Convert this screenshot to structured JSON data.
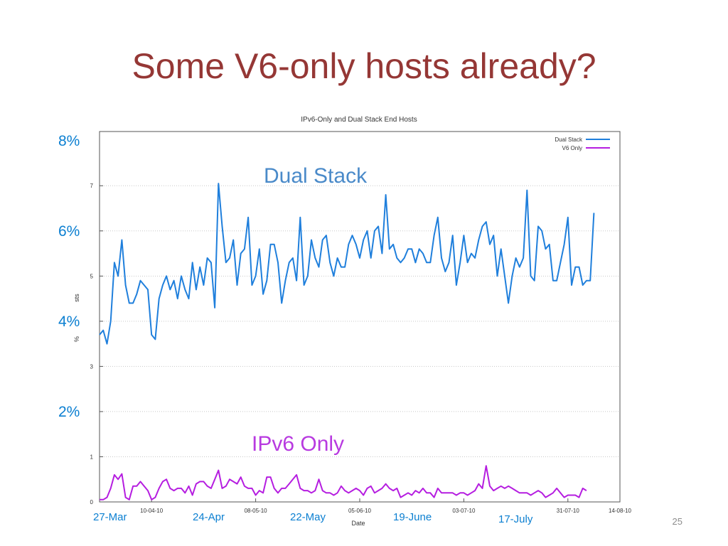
{
  "slide": {
    "title": "Some V6-only hosts already?",
    "page_number": "25"
  },
  "colors": {
    "title": "#953735",
    "annotation": "#0b7fd1",
    "dual_stack_label": "#4a8ac9",
    "v6_only_label": "#b83ae0"
  },
  "annotations": {
    "y_percent_labels": [
      {
        "text": "8%",
        "value": 8
      },
      {
        "text": "6%",
        "value": 6
      },
      {
        "text": "4%",
        "value": 4
      },
      {
        "text": "2%",
        "value": 2
      }
    ],
    "date_labels": [
      "27-Mar",
      "24-Apr",
      "22-May",
      "19-June",
      "17-July"
    ],
    "dual_stack_label": "Dual Stack",
    "v6_only_label": "IPv6 Only"
  },
  "chart_data": {
    "type": "line",
    "title": "IPv6-Only and Dual Stack End Hosts",
    "xlabel": "Date",
    "ylabel": "%",
    "ylabel_fragment": "sts",
    "ylim": [
      0,
      8.2
    ],
    "xlim": [
      "2010-03-27",
      "2010-08-14"
    ],
    "yticks": [
      0,
      1,
      2,
      3,
      4,
      5,
      6,
      7
    ],
    "ytick_labels": [
      "0",
      "1",
      "",
      "3",
      "",
      "5",
      "",
      "7"
    ],
    "xticks": [
      "10-04-10",
      "08-05-10",
      "05-06-10",
      "03-07-10",
      "31-07-10",
      "14-08-10"
    ],
    "xtick_labels": [
      "10-04-10",
      "08-05-10",
      "05-06-10",
      "03-07-10",
      "31-07-10",
      "14-08-10"
    ],
    "grid": true,
    "legend_position": "top-right",
    "series": [
      {
        "name": "Dual Stack",
        "color": "#1f7fdc",
        "start_date": "2010-03-27",
        "values": [
          3.7,
          3.8,
          3.5,
          4.0,
          5.3,
          5.0,
          5.8,
          4.8,
          4.4,
          4.4,
          4.6,
          4.9,
          4.8,
          4.7,
          3.7,
          3.6,
          4.5,
          4.8,
          5.0,
          4.7,
          4.9,
          4.5,
          5.0,
          4.7,
          4.5,
          5.3,
          4.7,
          5.2,
          4.8,
          5.4,
          5.3,
          4.3,
          7.05,
          6.1,
          5.3,
          5.4,
          5.8,
          4.8,
          5.5,
          5.6,
          6.3,
          4.8,
          5.0,
          5.6,
          4.6,
          4.9,
          5.7,
          5.7,
          5.3,
          4.4,
          4.9,
          5.3,
          5.4,
          4.9,
          6.3,
          4.8,
          5.0,
          5.8,
          5.4,
          5.2,
          5.8,
          5.9,
          5.3,
          5.0,
          5.4,
          5.2,
          5.2,
          5.7,
          5.9,
          5.7,
          5.4,
          5.8,
          6.0,
          5.4,
          6.0,
          6.1,
          5.5,
          6.8,
          5.6,
          5.7,
          5.4,
          5.3,
          5.4,
          5.6,
          5.6,
          5.3,
          5.6,
          5.5,
          5.3,
          5.3,
          5.9,
          6.3,
          5.4,
          5.1,
          5.3,
          5.9,
          4.8,
          5.3,
          5.9,
          5.3,
          5.5,
          5.4,
          5.8,
          6.1,
          6.2,
          5.7,
          5.9,
          5.0,
          5.6,
          5.0,
          4.4,
          5.0,
          5.4,
          5.2,
          5.4,
          6.9,
          5.0,
          4.9,
          6.1,
          6.0,
          5.6,
          5.7,
          4.9,
          4.9,
          5.3,
          5.7,
          6.3,
          4.8,
          5.2,
          5.2,
          4.8,
          4.9,
          4.9,
          6.4
        ]
      },
      {
        "name": "V6 Only",
        "color": "#b51de0",
        "start_date": "2010-03-27",
        "values": [
          0.05,
          0.05,
          0.1,
          0.3,
          0.6,
          0.5,
          0.62,
          0.1,
          0.05,
          0.35,
          0.35,
          0.45,
          0.35,
          0.25,
          0.05,
          0.1,
          0.3,
          0.45,
          0.5,
          0.3,
          0.25,
          0.3,
          0.3,
          0.2,
          0.35,
          0.15,
          0.4,
          0.45,
          0.45,
          0.35,
          0.3,
          0.5,
          0.7,
          0.3,
          0.35,
          0.5,
          0.45,
          0.4,
          0.55,
          0.35,
          0.3,
          0.3,
          0.15,
          0.25,
          0.2,
          0.55,
          0.55,
          0.3,
          0.2,
          0.3,
          0.3,
          0.4,
          0.5,
          0.6,
          0.3,
          0.25,
          0.25,
          0.2,
          0.25,
          0.5,
          0.25,
          0.2,
          0.2,
          0.15,
          0.2,
          0.35,
          0.25,
          0.2,
          0.25,
          0.3,
          0.25,
          0.15,
          0.3,
          0.35,
          0.2,
          0.25,
          0.3,
          0.4,
          0.3,
          0.25,
          0.3,
          0.1,
          0.15,
          0.2,
          0.15,
          0.25,
          0.2,
          0.3,
          0.2,
          0.2,
          0.1,
          0.3,
          0.2,
          0.2,
          0.2,
          0.2,
          0.15,
          0.2,
          0.2,
          0.15,
          0.2,
          0.25,
          0.4,
          0.3,
          0.8,
          0.35,
          0.25,
          0.3,
          0.35,
          0.3,
          0.35,
          0.3,
          0.25,
          0.2,
          0.2,
          0.2,
          0.15,
          0.2,
          0.25,
          0.2,
          0.1,
          0.15,
          0.2,
          0.3,
          0.2,
          0.1,
          0.15,
          0.15,
          0.15,
          0.1,
          0.3,
          0.25
        ]
      }
    ]
  }
}
